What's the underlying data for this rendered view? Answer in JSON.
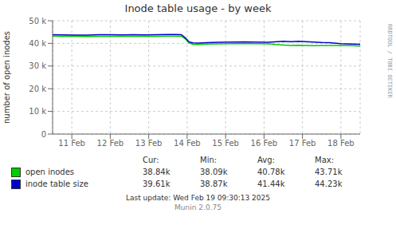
{
  "chart_data": {
    "type": "line",
    "title": "Inode table usage - by week",
    "y_label": "number of open inodes",
    "x": [
      0.0,
      0.3,
      0.6,
      0.9,
      1.2,
      1.5,
      1.8,
      2.1,
      2.4,
      2.7,
      3.0,
      3.2,
      3.35,
      3.45,
      3.55,
      3.65,
      3.8,
      4.0,
      4.3,
      4.6,
      5.0,
      5.3,
      5.6,
      6.0,
      6.2,
      6.4,
      6.6,
      6.8,
      7.0,
      7.2,
      7.5,
      7.8,
      8.0
    ],
    "xlim": [
      0,
      8
    ],
    "xticks": [
      {
        "value": 0.5,
        "label": "11 Feb"
      },
      {
        "value": 1.5,
        "label": "12 Feb"
      },
      {
        "value": 2.5,
        "label": "13 Feb"
      },
      {
        "value": 3.5,
        "label": "14 Feb"
      },
      {
        "value": 4.5,
        "label": "15 Feb"
      },
      {
        "value": 5.5,
        "label": "16 Feb"
      },
      {
        "value": 6.5,
        "label": "17 Feb"
      },
      {
        "value": 7.5,
        "label": "18 Feb"
      }
    ],
    "ylim": [
      0,
      50000
    ],
    "yticks": [
      0,
      {
        "value": 10000,
        "label": "10 k"
      },
      {
        "value": 20000,
        "label": "20 k"
      },
      {
        "value": 30000,
        "label": "30 k"
      },
      {
        "value": 40000,
        "label": "40 k"
      },
      {
        "value": 50000,
        "label": "50 k"
      }
    ],
    "grid": true,
    "legend": "bottom",
    "stats_headers": [
      "Cur:",
      "Min:",
      "Avg:",
      "Max:"
    ],
    "series": [
      {
        "name": "open inodes",
        "color": "#00cc00",
        "values": [
          43200,
          43150,
          43100,
          43050,
          43100,
          43150,
          43100,
          43200,
          43150,
          43100,
          43200,
          43200,
          43150,
          42000,
          40200,
          39600,
          39500,
          39700,
          39800,
          39900,
          40000,
          39900,
          39800,
          39300,
          39100,
          39200,
          39100,
          39000,
          39100,
          39100,
          39100,
          39000,
          38840
        ],
        "stats": [
          {
            "value": 38840,
            "label": "38.84k"
          },
          {
            "value": 38090,
            "label": "38.09k"
          },
          {
            "value": 40780,
            "label": "40.78k"
          },
          {
            "value": 43710,
            "label": "43.71k"
          }
        ]
      },
      {
        "name": "inode table size",
        "color": "#0000cc",
        "values": [
          43800,
          43750,
          43700,
          43700,
          43800,
          43800,
          43750,
          43800,
          43750,
          43800,
          43900,
          43900,
          43850,
          42500,
          40700,
          40200,
          40100,
          40300,
          40500,
          40600,
          40700,
          40600,
          40500,
          40900,
          40800,
          40900,
          40800,
          40600,
          40400,
          40300,
          39900,
          39700,
          39610
        ],
        "stats": [
          {
            "value": 39610,
            "label": "39.61k"
          },
          {
            "value": 38870,
            "label": "38.87k"
          },
          {
            "value": 41440,
            "label": "41.44k"
          },
          {
            "value": 44230,
            "label": "44.23k"
          }
        ]
      }
    ],
    "annotations": [
      "Last update: Wed Feb 19 09:30:13 2025",
      "Munin 2.0.75",
      "RRDTOOL / TOBI OETIKER"
    ]
  }
}
